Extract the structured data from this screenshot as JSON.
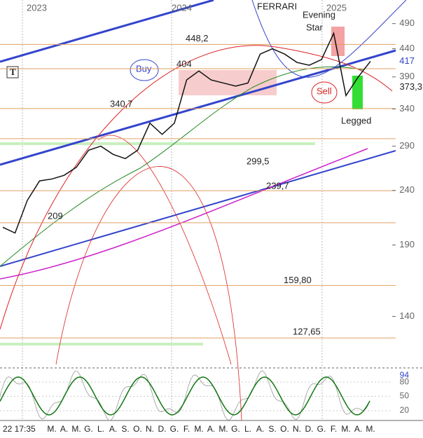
{
  "chart_data": {
    "type": "line",
    "title": "FERRARI",
    "years": [
      "2023",
      "2024",
      "2025"
    ],
    "timestamp": "22 17:35",
    "categories": [
      null,
      null,
      null,
      null,
      "M.",
      "A.",
      "M.",
      "G.",
      "L.",
      "A.",
      "S.",
      "O.",
      "N.",
      "D.",
      "G.",
      "F.",
      "M.",
      "A.",
      "M.",
      "G.",
      "L.",
      "A.",
      "S.",
      "O.",
      "N.",
      "D.",
      "G.",
      "F.",
      "M.",
      "A.",
      "M."
    ],
    "values": [
      205,
      200,
      230,
      250,
      252,
      256,
      265,
      285,
      290,
      280,
      275,
      285,
      320,
      305,
      320,
      385,
      400,
      385,
      380,
      375,
      380,
      430,
      440,
      430,
      415,
      410,
      420,
      470,
      360,
      390,
      417
    ],
    "color": "#111111",
    "log_scale": true,
    "ylim": [
      114,
      542
    ],
    "yticks": [
      140,
      190,
      240,
      290,
      340,
      390,
      440,
      490
    ],
    "levels": [
      {
        "value": 448.2,
        "label": "448,2"
      },
      {
        "value": 404,
        "label": "404"
      },
      {
        "value": 340.7,
        "label": "340,7"
      },
      {
        "value": 299.5,
        "label": "299,5"
      },
      {
        "value": 239.7,
        "label": "239,7"
      },
      {
        "value": 209,
        "label": "209"
      },
      {
        "value": 159.8,
        "label": "159,80"
      },
      {
        "value": 127.65,
        "label": "127,65"
      }
    ],
    "price_marker": {
      "value": 373.3,
      "label": "373,3"
    },
    "last_value": 417,
    "annotations": {
      "buy": "Buy",
      "sell": "Sell",
      "evening": "Evening",
      "star": "Star",
      "legged": "Legged",
      "tool": "T"
    },
    "oscillator": {
      "ylim": [
        0,
        100
      ],
      "yticks": [
        20,
        50,
        80
      ],
      "last_value": 94
    }
  }
}
